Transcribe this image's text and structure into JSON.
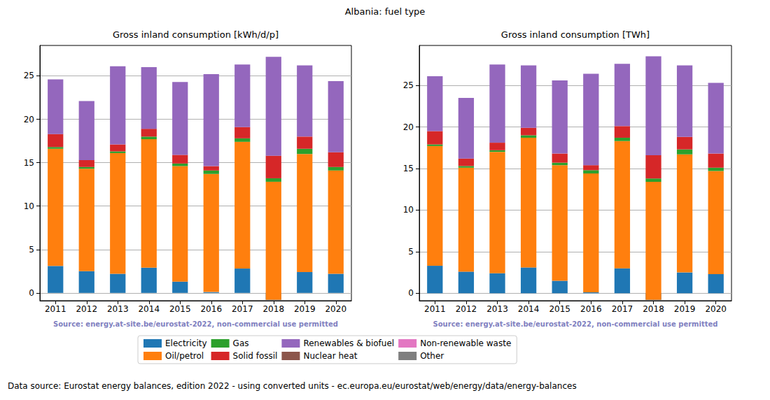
{
  "title": "Albania: fuel type",
  "footer": "Data source: Eurostat energy balances, edition 2022 - using converted units - ec.europa.eu/eurostat/web/energy/data/energy-balances",
  "chart_data": [
    {
      "type": "bar",
      "title": "Gross inland consumption [kWh/d/p]",
      "source": "Source: energy.at-site.be/eurostat-2022, non-commercial use permitted",
      "stacked": true,
      "grid": true,
      "legend": "bottom",
      "categories": [
        "2011",
        "2012",
        "2013",
        "2014",
        "2015",
        "2016",
        "2017",
        "2018",
        "2019",
        "2020"
      ],
      "ylim": [
        -0.9,
        28.5
      ],
      "yticks": [
        0,
        5,
        10,
        15,
        20,
        25
      ],
      "series": [
        {
          "name": "Electricity",
          "color": "#1f77b4",
          "values": [
            3.1,
            2.5,
            2.2,
            2.9,
            1.3,
            0.1,
            2.8,
            -0.8,
            2.4,
            2.2
          ]
        },
        {
          "name": "Oil/petrol",
          "color": "#ff7f0e",
          "values": [
            13.5,
            11.8,
            13.9,
            14.8,
            13.3,
            13.6,
            14.6,
            13.6,
            13.6,
            11.9
          ]
        },
        {
          "name": "Gas",
          "color": "#2ca02c",
          "values": [
            0.2,
            0.2,
            0.2,
            0.3,
            0.3,
            0.4,
            0.4,
            0.4,
            0.6,
            0.4
          ]
        },
        {
          "name": "Solid fossil",
          "color": "#d62728",
          "values": [
            1.5,
            0.8,
            0.8,
            0.9,
            1.0,
            0.5,
            1.3,
            2.6,
            1.4,
            1.7
          ]
        },
        {
          "name": "Renewables & biofuel",
          "color": "#9467bd",
          "values": [
            6.3,
            6.8,
            9.0,
            7.1,
            8.4,
            10.6,
            7.2,
            11.4,
            8.2,
            8.2
          ]
        },
        {
          "name": "Nuclear heat",
          "color": "#8c564b",
          "values": [
            0,
            0,
            0,
            0,
            0,
            0,
            0,
            0,
            0,
            0
          ]
        },
        {
          "name": "Non-renewable waste",
          "color": "#e377c2",
          "values": [
            0,
            0,
            0,
            0,
            0,
            0,
            0,
            0,
            0,
            0
          ]
        },
        {
          "name": "Other",
          "color": "#7f7f7f",
          "values": [
            0,
            0,
            0,
            0,
            0,
            0,
            0,
            0,
            0,
            0
          ]
        }
      ]
    },
    {
      "type": "bar",
      "title": "Gross inland consumption [TWh]",
      "source": "Source: energy.at-site.be/eurostat-2022, non-commercial use permitted",
      "stacked": true,
      "grid": true,
      "legend": "bottom",
      "categories": [
        "2011",
        "2012",
        "2013",
        "2014",
        "2015",
        "2016",
        "2017",
        "2018",
        "2019",
        "2020"
      ],
      "ylim": [
        -0.9,
        29.8
      ],
      "yticks": [
        0,
        5,
        10,
        15,
        20,
        25
      ],
      "series": [
        {
          "name": "Electricity",
          "color": "#1f77b4",
          "values": [
            3.3,
            2.6,
            2.4,
            3.1,
            1.5,
            0.1,
            3.0,
            -0.8,
            2.5,
            2.3
          ]
        },
        {
          "name": "Oil/petrol",
          "color": "#ff7f0e",
          "values": [
            14.4,
            12.5,
            14.6,
            15.6,
            13.9,
            14.3,
            15.3,
            14.2,
            14.2,
            12.4
          ]
        },
        {
          "name": "Gas",
          "color": "#2ca02c",
          "values": [
            0.2,
            0.2,
            0.2,
            0.3,
            0.3,
            0.4,
            0.4,
            0.4,
            0.6,
            0.4
          ]
        },
        {
          "name": "Solid fossil",
          "color": "#d62728",
          "values": [
            1.6,
            0.9,
            0.9,
            0.9,
            1.1,
            0.6,
            1.4,
            2.8,
            1.5,
            1.7
          ]
        },
        {
          "name": "Renewables & biofuel",
          "color": "#9467bd",
          "values": [
            6.6,
            7.3,
            9.4,
            7.5,
            8.8,
            11.0,
            7.5,
            11.9,
            8.6,
            8.5
          ]
        },
        {
          "name": "Nuclear heat",
          "color": "#8c564b",
          "values": [
            0,
            0,
            0,
            0,
            0,
            0,
            0,
            0,
            0,
            0
          ]
        },
        {
          "name": "Non-renewable waste",
          "color": "#e377c2",
          "values": [
            0,
            0,
            0,
            0,
            0,
            0,
            0,
            0,
            0,
            0
          ]
        },
        {
          "name": "Other",
          "color": "#7f7f7f",
          "values": [
            0,
            0,
            0,
            0,
            0,
            0,
            0,
            0,
            0,
            0
          ]
        }
      ]
    }
  ]
}
